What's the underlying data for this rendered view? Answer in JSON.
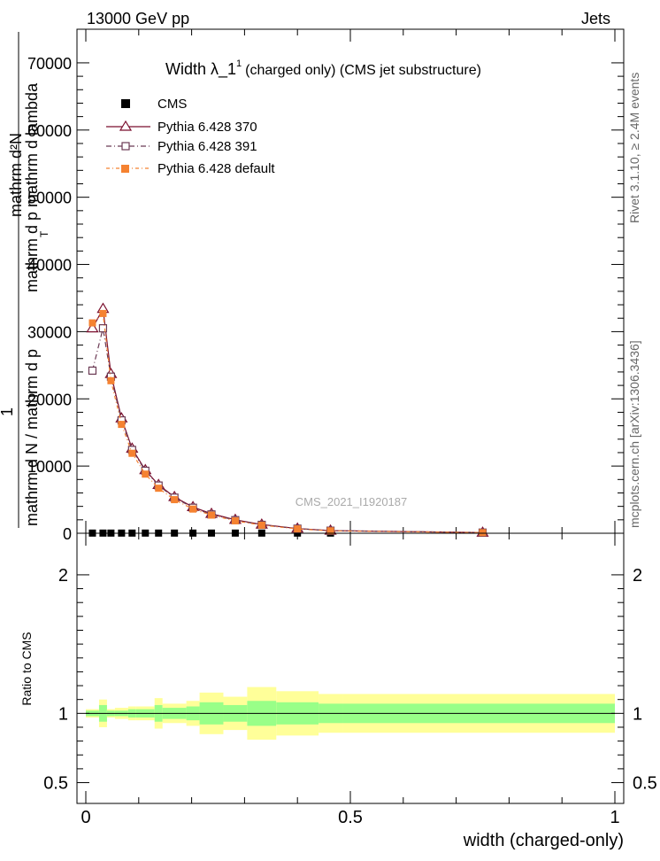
{
  "header": {
    "left": "13000 GeV pp",
    "right": "Jets"
  },
  "side_labels": {
    "rivet": "Rivet 3.1.10, ≥ 2.4M events",
    "mcplots": "mcplots.cern.ch [arXiv:1306.3436]"
  },
  "watermark": "CMS_2021_I1920187",
  "colors": {
    "cms": "#000000",
    "p370": "#7a0f2e",
    "p391": "#6b3a54",
    "pdef": "#f58231",
    "band_outer": "#ffff99",
    "band_inner": "#99ff88"
  },
  "chart_data": [
    {
      "type": "line",
      "title_main": "Width λ_1",
      "title_sup": "1",
      "title_rest": "(charged only) (CMS jet substructure)",
      "ylabel_numer": "mathrm d²N",
      "ylabel_numer2": "mathrm d p   mathrm d lambda",
      "ylabel_one": "1",
      "ylabel_denom": "mathrm d N / mathrm d p",
      "ylabel_sub": "T",
      "xlim": [
        0,
        1
      ],
      "ylim": [
        0,
        75000
      ],
      "yticks": [
        0,
        10000,
        20000,
        30000,
        40000,
        50000,
        60000,
        70000
      ],
      "ytick_labels": [
        "0",
        "10000",
        "20000",
        "30000",
        "40000",
        "50000",
        "60000",
        "70000"
      ],
      "legend": [
        "CMS",
        "Pythia 6.428 370",
        "Pythia 6.428 391",
        "Pythia 6.428 default"
      ],
      "x": [
        0.0125,
        0.0325,
        0.0475,
        0.0675,
        0.0875,
        0.1125,
        0.1375,
        0.1675,
        0.2025,
        0.2375,
        0.2825,
        0.3325,
        0.4,
        0.4625,
        0.75
      ],
      "series": [
        {
          "name": "CMS",
          "values": [
            25,
            25,
            25,
            25,
            25,
            25,
            25,
            25,
            25,
            25,
            25,
            25,
            25,
            25,
            25
          ]
        },
        {
          "name": "Pythia 6.428 370",
          "values": [
            30500,
            33400,
            23700,
            17100,
            12600,
            9400,
            7200,
            5400,
            3900,
            2900,
            2000,
            1300,
            700,
            400,
            100
          ]
        },
        {
          "name": "Pythia 6.428 391",
          "values": [
            24200,
            30500,
            23300,
            16800,
            12400,
            9300,
            7100,
            5300,
            3800,
            2800,
            1950,
            1250,
            680,
            380,
            100
          ]
        },
        {
          "name": "Pythia 6.428 default",
          "values": [
            31300,
            32700,
            22700,
            16200,
            11900,
            8800,
            6700,
            5000,
            3600,
            2700,
            1850,
            1200,
            650,
            360,
            90
          ]
        }
      ]
    },
    {
      "type": "area",
      "ylabel": "Ratio to CMS",
      "xlabel": "width (charged-only)",
      "xlim": [
        0,
        1
      ],
      "ylim": [
        0.35,
        2.3
      ],
      "yticks": [
        0.5,
        1,
        2
      ],
      "ytick_labels": [
        "0.5",
        "1",
        "2"
      ],
      "xticks": [
        0,
        0.5,
        1
      ],
      "xtick_labels": [
        "0",
        "0.5",
        "1"
      ],
      "bins": [
        0,
        0.025,
        0.04,
        0.055,
        0.08,
        0.095,
        0.13,
        0.145,
        0.19,
        0.215,
        0.26,
        0.305,
        0.36,
        0.44,
        0.485,
        1
      ],
      "band_outer": [
        [
          0.97,
          1.03
        ],
        [
          0.9,
          1.1
        ],
        [
          0.97,
          1.03
        ],
        [
          0.96,
          1.04
        ],
        [
          0.95,
          1.05
        ],
        [
          0.95,
          1.05
        ],
        [
          0.89,
          1.11
        ],
        [
          0.93,
          1.07
        ],
        [
          0.91,
          1.09
        ],
        [
          0.85,
          1.15
        ],
        [
          0.88,
          1.12
        ],
        [
          0.81,
          1.19
        ],
        [
          0.84,
          1.16
        ],
        [
          0.86,
          1.14
        ],
        [
          0.86,
          1.14
        ]
      ],
      "band_inner": [
        [
          0.98,
          1.02
        ],
        [
          0.94,
          1.06
        ],
        [
          0.98,
          1.02
        ],
        [
          0.98,
          1.02
        ],
        [
          0.97,
          1.03
        ],
        [
          0.97,
          1.03
        ],
        [
          0.94,
          1.06
        ],
        [
          0.96,
          1.04
        ],
        [
          0.95,
          1.05
        ],
        [
          0.92,
          1.08
        ],
        [
          0.94,
          1.06
        ],
        [
          0.91,
          1.09
        ],
        [
          0.92,
          1.08
        ],
        [
          0.93,
          1.07
        ],
        [
          0.93,
          1.07
        ]
      ]
    }
  ]
}
